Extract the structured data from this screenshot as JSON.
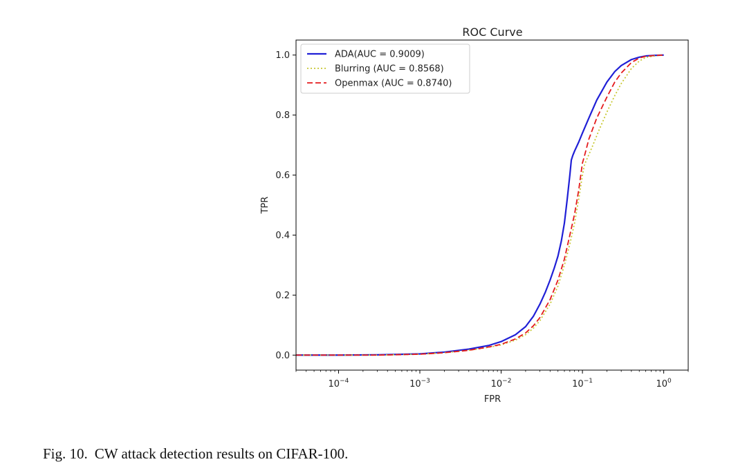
{
  "caption": {
    "number": "Fig. 10.",
    "text": "CW attack detection results on CIFAR-100."
  },
  "chart_data": {
    "type": "line",
    "title": "ROC Curve",
    "xlabel": "FPR",
    "ylabel": "TPR",
    "xscale": "log",
    "xlim": [
      3e-05,
      2.0
    ],
    "ylim": [
      -0.05,
      1.05
    ],
    "xticks": [
      {
        "value": 0.0001,
        "base": "10",
        "exp": "−4"
      },
      {
        "value": 0.001,
        "base": "10",
        "exp": "−3"
      },
      {
        "value": 0.01,
        "base": "10",
        "exp": "−2"
      },
      {
        "value": 0.1,
        "base": "10",
        "exp": "−1"
      },
      {
        "value": 1,
        "base": "10",
        "exp": "0"
      }
    ],
    "yticks": [
      "0.0",
      "0.2",
      "0.4",
      "0.6",
      "0.8",
      "1.0"
    ],
    "grid": false,
    "legend_position": "top-left",
    "series": [
      {
        "name": "ADA(AUC = 0.9009)",
        "color": "#1f1fd6",
        "style": "solid",
        "x": [
          3e-05,
          0.0001,
          0.0003,
          0.001,
          0.002,
          0.004,
          0.007,
          0.01,
          0.015,
          0.02,
          0.025,
          0.03,
          0.035,
          0.04,
          0.045,
          0.05,
          0.055,
          0.06,
          0.065,
          0.07,
          0.073,
          0.076,
          0.08,
          0.09,
          0.1,
          0.12,
          0.15,
          0.2,
          0.25,
          0.3,
          0.4,
          0.5,
          0.6,
          0.8,
          1.0
        ],
        "y": [
          0.0,
          0.0,
          0.001,
          0.004,
          0.01,
          0.02,
          0.032,
          0.045,
          0.068,
          0.095,
          0.13,
          0.17,
          0.21,
          0.25,
          0.29,
          0.33,
          0.38,
          0.44,
          0.52,
          0.6,
          0.65,
          0.665,
          0.68,
          0.71,
          0.74,
          0.79,
          0.85,
          0.91,
          0.945,
          0.965,
          0.985,
          0.993,
          0.997,
          0.999,
          1.0
        ]
      },
      {
        "name": "Blurring (AUC = 0.8568)",
        "color": "#c8c832",
        "style": "dotted",
        "x": [
          3e-05,
          0.0001,
          0.0003,
          0.001,
          0.002,
          0.004,
          0.007,
          0.01,
          0.015,
          0.02,
          0.025,
          0.03,
          0.04,
          0.05,
          0.06,
          0.07,
          0.08,
          0.09,
          0.1,
          0.105,
          0.11,
          0.13,
          0.16,
          0.2,
          0.25,
          0.3,
          0.4,
          0.5,
          0.6,
          0.8,
          1.0
        ],
        "y": [
          0.0,
          0.0,
          0.0,
          0.003,
          0.008,
          0.016,
          0.026,
          0.034,
          0.05,
          0.068,
          0.09,
          0.115,
          0.17,
          0.23,
          0.3,
          0.37,
          0.44,
          0.52,
          0.6,
          0.63,
          0.645,
          0.69,
          0.75,
          0.81,
          0.865,
          0.905,
          0.955,
          0.98,
          0.992,
          0.998,
          1.0
        ]
      },
      {
        "name": "Openmax (AUC = 0.8740)",
        "color": "#e41a1c",
        "style": "dashed",
        "x": [
          3e-05,
          0.0001,
          0.0003,
          0.001,
          0.002,
          0.004,
          0.007,
          0.01,
          0.015,
          0.02,
          0.025,
          0.03,
          0.04,
          0.05,
          0.06,
          0.07,
          0.08,
          0.09,
          0.1,
          0.105,
          0.12,
          0.15,
          0.2,
          0.25,
          0.3,
          0.4,
          0.5,
          0.6,
          0.8,
          1.0
        ],
        "y": [
          0.0,
          0.0,
          0.0,
          0.003,
          0.008,
          0.016,
          0.027,
          0.036,
          0.054,
          0.074,
          0.098,
          0.125,
          0.185,
          0.25,
          0.32,
          0.4,
          0.47,
          0.55,
          0.64,
          0.66,
          0.72,
          0.79,
          0.86,
          0.91,
          0.94,
          0.975,
          0.99,
          0.996,
          0.999,
          1.0
        ]
      }
    ]
  }
}
